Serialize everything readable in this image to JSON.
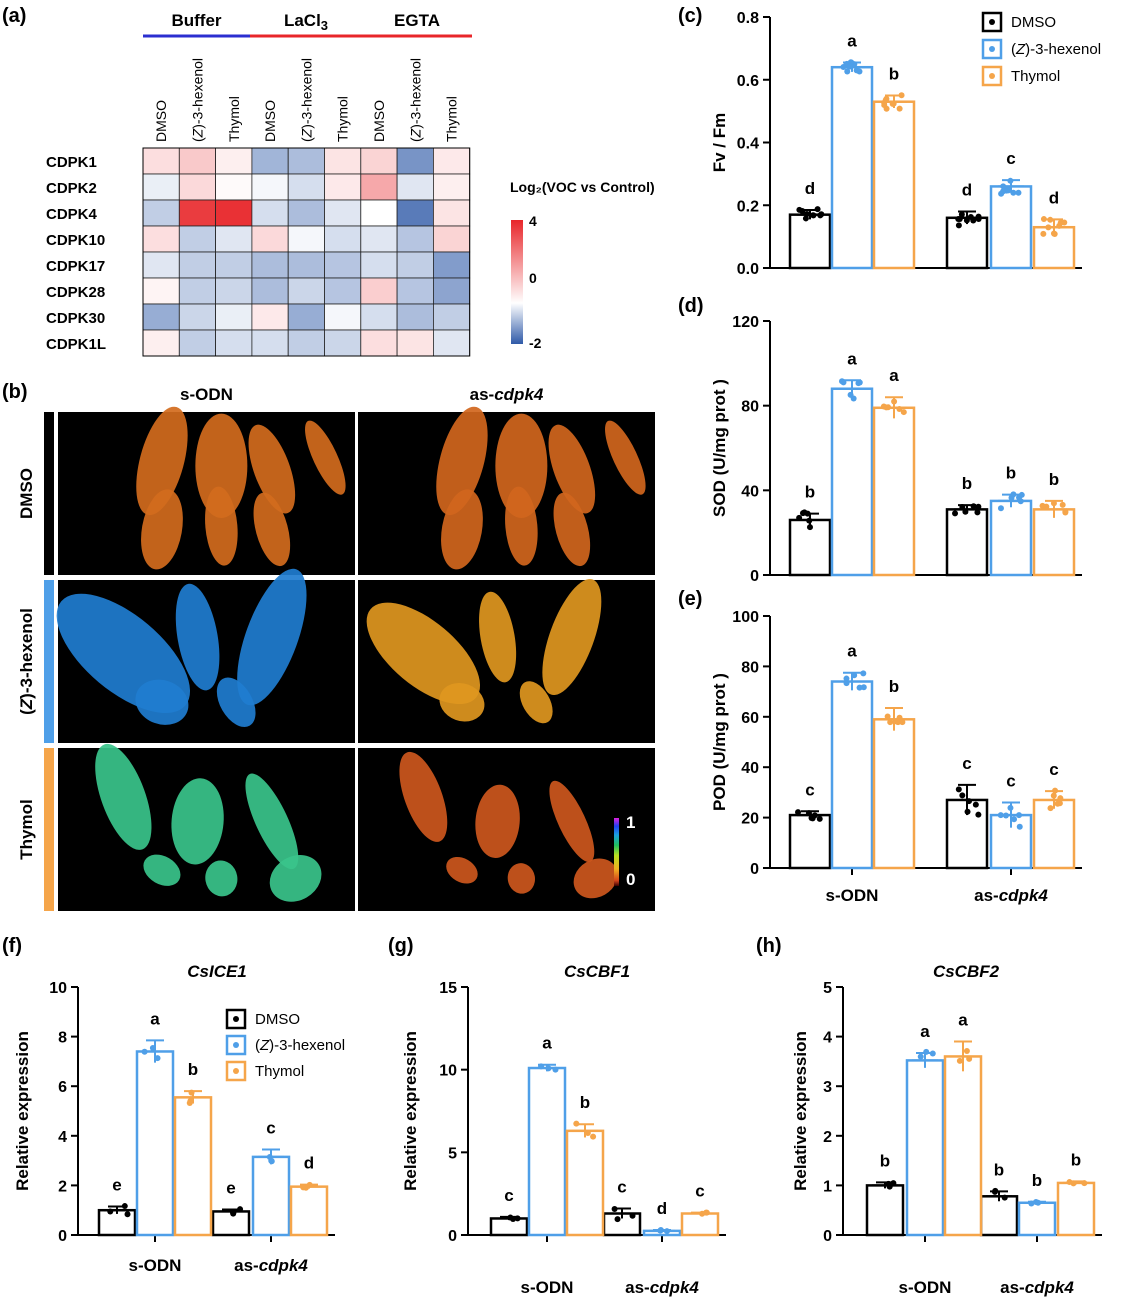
{
  "panel_labels": [
    "(a)",
    "(b)",
    "(c)",
    "(d)",
    "(e)",
    "(f)",
    "(g)",
    "(h)"
  ],
  "colors": {
    "dmso": "#000000",
    "hexenol": "#4f9fe8",
    "thymol": "#f5a54a",
    "heat_pos": "#e8262a",
    "heat_neg": "#2f5aa8",
    "buffer_bar": "#2b2fd0",
    "lacl3_bar": "#e8262a",
    "egta_bar": "#e8262a"
  },
  "heatmap": {
    "groups": [
      "Buffer",
      "LaCl3",
      "EGTA"
    ],
    "columns": [
      "DMSO",
      "(Z)-3-hexenol",
      "Thymol",
      "DMSO",
      "(Z)-3-hexenol",
      "Thymol",
      "DMSO",
      "(Z)-3-hexenol",
      "Thymol"
    ],
    "rows": [
      "CDPK1",
      "CDPK2",
      "CDPK4",
      "CDPK10",
      "CDPK17",
      "CDPK28",
      "CDPK30",
      "CDPK1L"
    ],
    "values": [
      [
        0.6,
        1.0,
        0.3,
        -0.9,
        -0.8,
        0.5,
        0.8,
        -1.3,
        0.4
      ],
      [
        -0.2,
        0.7,
        0.1,
        -0.1,
        -0.4,
        0.4,
        1.6,
        -0.3,
        0.3
      ],
      [
        -0.6,
        3.6,
        3.8,
        -0.4,
        -0.8,
        -0.3,
        0.0,
        -1.6,
        0.5
      ],
      [
        0.6,
        -0.6,
        -0.3,
        0.7,
        -0.1,
        -0.4,
        -0.3,
        -0.7,
        0.8
      ],
      [
        -0.3,
        -0.6,
        -0.6,
        -0.8,
        -0.8,
        -0.7,
        -0.4,
        -0.6,
        -1.2
      ],
      [
        0.2,
        -0.6,
        -0.5,
        -0.8,
        -0.5,
        -0.7,
        0.9,
        -0.7,
        -1.1
      ],
      [
        -1.0,
        -0.5,
        -0.2,
        0.4,
        -1.0,
        -0.1,
        -0.4,
        -0.8,
        -0.6
      ],
      [
        0.3,
        -0.6,
        -0.4,
        -0.4,
        -0.6,
        -0.5,
        0.6,
        0.5,
        -0.3
      ]
    ],
    "colorbar_title": "Log₂(VOC vs Control)",
    "colorbar_ticks": [
      "4",
      "0",
      "-2"
    ],
    "colorbar_range": [
      -2,
      4
    ]
  },
  "images_panel": {
    "col_headers": [
      "s-ODN",
      "as-cdpk4"
    ],
    "row_labels": [
      "DMSO",
      "(Z)-3-hexenol",
      "Thymol"
    ],
    "row_bar_colors": [
      "#000000",
      "#4f9fe8",
      "#f5a54a"
    ],
    "colorscale_ticks": [
      "1",
      "0"
    ],
    "fvfm_levels": [
      [
        0.17,
        0.16
      ],
      [
        0.64,
        0.26
      ],
      [
        0.53,
        0.13
      ]
    ]
  },
  "legend": {
    "entries": [
      "DMSO",
      "(Z)-3-hexenol",
      "Thymol"
    ]
  },
  "chart_data": [
    {
      "id": "c",
      "type": "bar",
      "title": "",
      "xlabel": "",
      "ylabel": "Fv / Fm",
      "categories": [
        "s-ODN",
        "as-cdpk4"
      ],
      "ylim": [
        0,
        0.8
      ],
      "yticks": [
        "0.0",
        "0.2",
        "0.4",
        "0.6",
        "0.8"
      ],
      "series": [
        {
          "name": "DMSO",
          "values": [
            0.17,
            0.16
          ],
          "err": [
            0.015,
            0.02
          ],
          "letters": [
            "d",
            "d"
          ]
        },
        {
          "name": "(Z)-3-hexenol",
          "values": [
            0.64,
            0.26
          ],
          "err": [
            0.015,
            0.02
          ],
          "letters": [
            "a",
            "c"
          ]
        },
        {
          "name": "Thymol",
          "values": [
            0.53,
            0.13
          ],
          "err": [
            0.02,
            0.025
          ],
          "letters": [
            "b",
            "d"
          ]
        }
      ]
    },
    {
      "id": "d",
      "type": "bar",
      "title": "",
      "xlabel": "",
      "ylabel": "SOD (U/mg prot )",
      "categories": [
        "s-ODN",
        "as-cdpk4"
      ],
      "ylim": [
        0,
        120
      ],
      "yticks": [
        "0",
        "40",
        "80",
        "120"
      ],
      "series": [
        {
          "name": "DMSO",
          "values": [
            26,
            31
          ],
          "err": [
            3,
            2
          ],
          "letters": [
            "b",
            "b"
          ]
        },
        {
          "name": "(Z)-3-hexenol",
          "values": [
            88,
            35
          ],
          "err": [
            4,
            3
          ],
          "letters": [
            "a",
            "b"
          ]
        },
        {
          "name": "Thymol",
          "values": [
            79,
            31
          ],
          "err": [
            5,
            4
          ],
          "letters": [
            "a",
            "b"
          ]
        }
      ]
    },
    {
      "id": "e",
      "type": "bar",
      "title": "",
      "xlabel": "",
      "ylabel": "POD (U/mg prot )",
      "categories": [
        "s-ODN",
        "as-cdpk4"
      ],
      "ylim": [
        0,
        100
      ],
      "yticks": [
        "0",
        "20",
        "40",
        "60",
        "80",
        "100"
      ],
      "series": [
        {
          "name": "DMSO",
          "values": [
            21,
            27
          ],
          "err": [
            1.5,
            6
          ],
          "letters": [
            "c",
            "c"
          ]
        },
        {
          "name": "(Z)-3-hexenol",
          "values": [
            74,
            21
          ],
          "err": [
            3.5,
            5
          ],
          "letters": [
            "a",
            "c"
          ]
        },
        {
          "name": "Thymol",
          "values": [
            59,
            27
          ],
          "err": [
            4.5,
            3.5
          ],
          "letters": [
            "b",
            "c"
          ]
        }
      ]
    },
    {
      "id": "f",
      "type": "bar",
      "title": "CsICE1",
      "xlabel": "",
      "ylabel": "Relative  expression",
      "categories": [
        "s-ODN",
        "as-cdpk4"
      ],
      "ylim": [
        0,
        10
      ],
      "yticks": [
        "0",
        "2",
        "4",
        "6",
        "8",
        "10"
      ],
      "series": [
        {
          "name": "DMSO",
          "values": [
            1.0,
            0.95
          ],
          "err": [
            0.15,
            0.08
          ],
          "letters": [
            "e",
            "e"
          ]
        },
        {
          "name": "(Z)-3-hexenol",
          "values": [
            7.4,
            3.15
          ],
          "err": [
            0.45,
            0.3
          ],
          "letters": [
            "a",
            "c"
          ]
        },
        {
          "name": "Thymol",
          "values": [
            5.55,
            1.95
          ],
          "err": [
            0.25,
            0.08
          ],
          "letters": [
            "b",
            "d"
          ]
        }
      ]
    },
    {
      "id": "g",
      "type": "bar",
      "title": "CsCBF1",
      "xlabel": "",
      "ylabel": "Relative expression",
      "categories": [
        "s-ODN",
        "as-cdpk4"
      ],
      "ylim": [
        0,
        15
      ],
      "yticks": [
        "0",
        "5",
        "10",
        "15"
      ],
      "series": [
        {
          "name": "DMSO",
          "values": [
            1.0,
            1.3
          ],
          "err": [
            0.1,
            0.3
          ],
          "letters": [
            "c",
            "c"
          ]
        },
        {
          "name": "(Z)-3-hexenol",
          "values": [
            10.1,
            0.25
          ],
          "err": [
            0.2,
            0.05
          ],
          "letters": [
            "a",
            "d"
          ]
        },
        {
          "name": "Thymol",
          "values": [
            6.3,
            1.3
          ],
          "err": [
            0.4,
            0.05
          ],
          "letters": [
            "b",
            "c"
          ]
        }
      ]
    },
    {
      "id": "h",
      "type": "bar",
      "title": "CsCBF2",
      "xlabel": "",
      "ylabel": "Relative expression",
      "categories": [
        "s-ODN",
        "as-cdpk4"
      ],
      "ylim": [
        0,
        5
      ],
      "yticks": [
        "0",
        "1",
        "2",
        "3",
        "4",
        "5"
      ],
      "series": [
        {
          "name": "DMSO",
          "values": [
            1.0,
            0.78
          ],
          "err": [
            0.06,
            0.1
          ],
          "letters": [
            "b",
            "b"
          ]
        },
        {
          "name": "(Z)-3-hexenol",
          "values": [
            3.52,
            0.65
          ],
          "err": [
            0.15,
            0.02
          ],
          "letters": [
            "a",
            "b"
          ]
        },
        {
          "name": "Thymol",
          "values": [
            3.6,
            1.05
          ],
          "err": [
            0.3,
            0.03
          ],
          "letters": [
            "a",
            "b"
          ]
        }
      ]
    }
  ]
}
